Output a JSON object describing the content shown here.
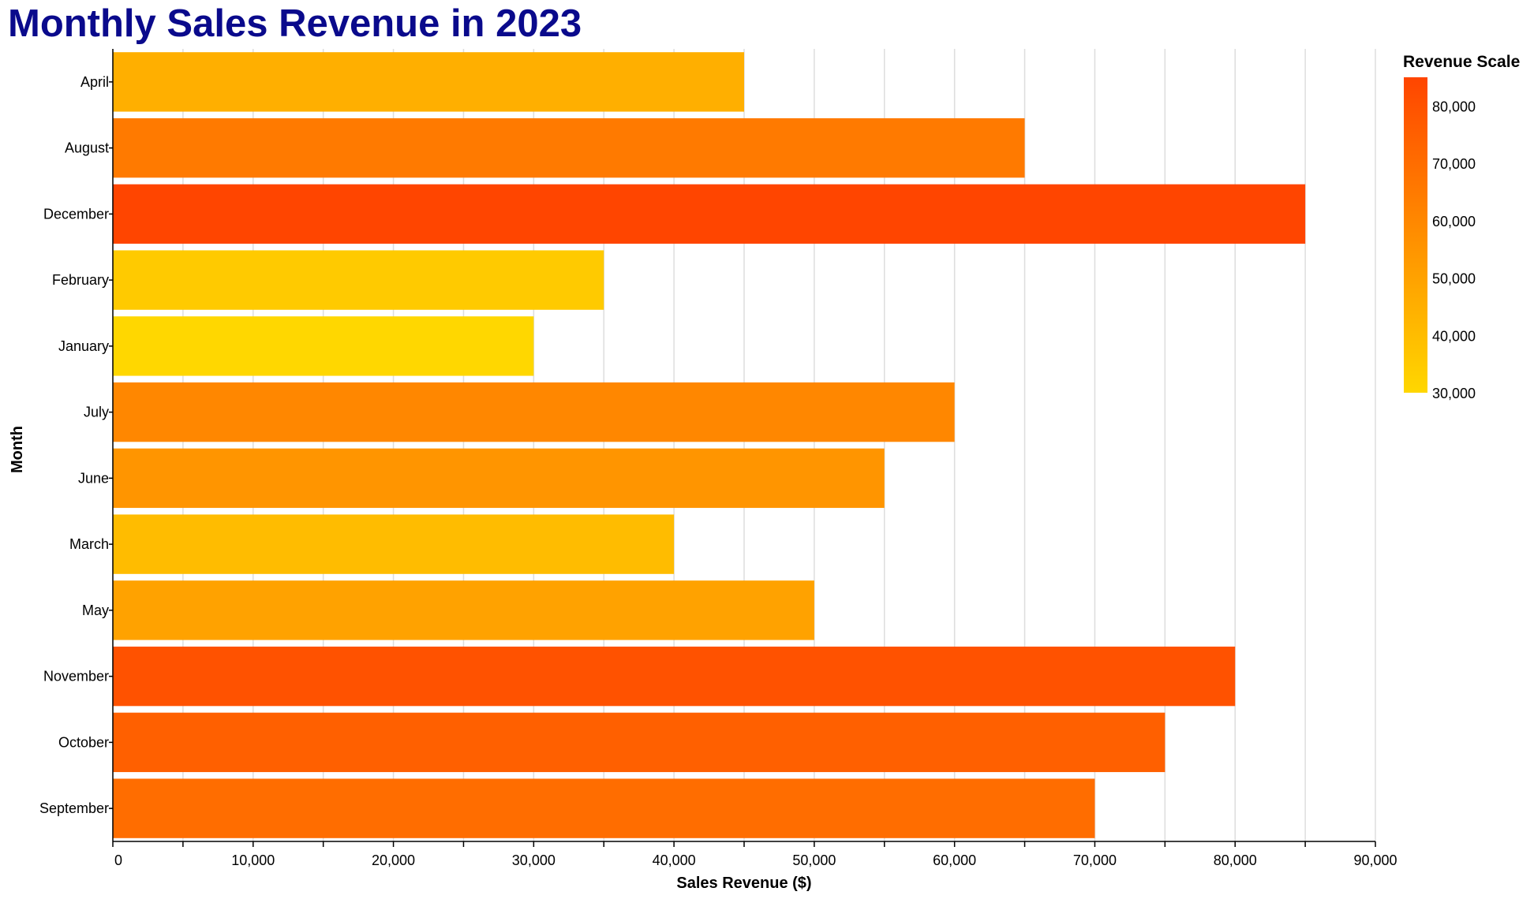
{
  "chart_data": {
    "type": "bar",
    "orientation": "horizontal",
    "title": "Monthly Sales Revenue in 2023",
    "xlabel": "Sales Revenue ($)",
    "ylabel": "Month",
    "xlim": [
      0,
      90000
    ],
    "x_ticks": [
      0,
      10000,
      20000,
      30000,
      40000,
      50000,
      60000,
      70000,
      80000,
      90000
    ],
    "x_tick_labels": [
      "0",
      "10,000",
      "20,000",
      "30,000",
      "40,000",
      "50,000",
      "60,000",
      "70,000",
      "80,000",
      "90,000"
    ],
    "grid": true,
    "categories": [
      "April",
      "August",
      "December",
      "February",
      "January",
      "July",
      "June",
      "March",
      "May",
      "November",
      "October",
      "September"
    ],
    "values": [
      45000,
      65000,
      85000,
      35000,
      30000,
      60000,
      55000,
      40000,
      50000,
      80000,
      75000,
      70000
    ],
    "legend": {
      "title": "Revenue Scale",
      "placement": "right",
      "domain": [
        30000,
        85000
      ],
      "tick_values": [
        30000,
        40000,
        50000,
        60000,
        70000,
        80000
      ],
      "tick_labels": [
        "30,000",
        "40,000",
        "50,000",
        "60,000",
        "70,000",
        "80,000"
      ]
    },
    "colors": {
      "low": "#ffd700",
      "high": "#ff4500"
    }
  }
}
